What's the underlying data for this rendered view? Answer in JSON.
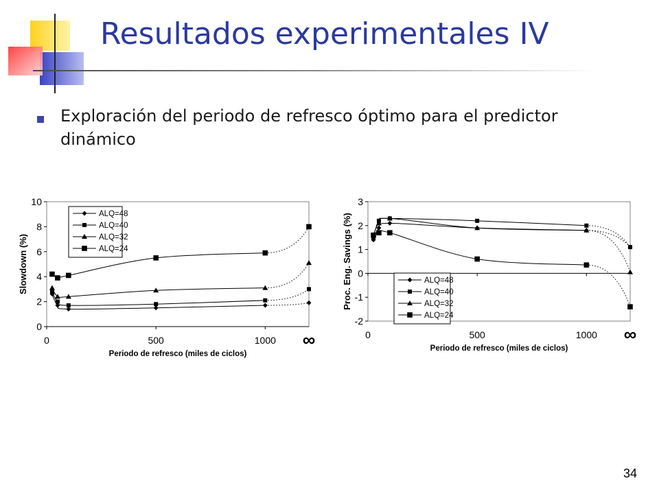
{
  "slide": {
    "title": "Resultados experimentales IV",
    "bullet": "Exploración del periodo de refresco óptimo para el predictor dinámico",
    "page_number": "34",
    "colors": {
      "title": "#2b3a9e",
      "bullet": "#3b44b0",
      "deco_yellow": "#ffd21f",
      "deco_blue": "#3b44c4",
      "deco_red": "#ff4a4a"
    }
  },
  "chart_data": [
    {
      "type": "line",
      "title": "",
      "xlabel": "Periodo de refresco (miles de ciclos)",
      "ylabel": "Slowdown (%)",
      "xlim": [
        0,
        1200
      ],
      "ylim": [
        0,
        10
      ],
      "x_ticks": [
        "0",
        "500",
        "1000"
      ],
      "x_tick_values": [
        0,
        500,
        1000
      ],
      "y_ticks": [
        "0",
        "2",
        "4",
        "6",
        "8",
        "10"
      ],
      "y_tick_values": [
        0,
        2,
        4,
        6,
        8,
        10
      ],
      "infinity_label": "∞",
      "infinity_x": 1200,
      "legend_position": "top-left",
      "grid": false,
      "series": [
        {
          "name": "ALQ=48",
          "marker": "diamond",
          "x": [
            25,
            50,
            100,
            500,
            1000
          ],
          "y": [
            2.6,
            1.7,
            1.4,
            1.5,
            1.7
          ],
          "infinity": 1.9
        },
        {
          "name": "ALQ=40",
          "marker": "square",
          "x": [
            25,
            50,
            100,
            500,
            1000
          ],
          "y": [
            2.8,
            2.0,
            1.7,
            1.8,
            2.1
          ],
          "infinity": 3.0
        },
        {
          "name": "ALQ=32",
          "marker": "triangle",
          "x": [
            25,
            50,
            100,
            500,
            1000
          ],
          "y": [
            3.1,
            2.4,
            2.4,
            2.9,
            3.1
          ],
          "infinity": 5.1
        },
        {
          "name": "ALQ=24",
          "marker": "square-large",
          "x": [
            25,
            50,
            100,
            500,
            1000
          ],
          "y": [
            4.2,
            3.9,
            4.1,
            5.5,
            5.9
          ],
          "infinity": 8.0
        }
      ]
    },
    {
      "type": "line",
      "title": "",
      "xlabel": "Periodo de refresco (miles de ciclos)",
      "ylabel": "Proc. Eng. Savings (%)",
      "xlim": [
        0,
        1200
      ],
      "ylim": [
        -2,
        3
      ],
      "x_ticks": [
        "0",
        "500",
        "1000"
      ],
      "x_tick_values": [
        0,
        500,
        1000
      ],
      "y_ticks": [
        "-2",
        "-1",
        "0",
        "1",
        "2",
        "3"
      ],
      "y_tick_values": [
        -2,
        -1,
        0,
        1,
        2,
        3
      ],
      "infinity_label": "∞",
      "infinity_x": 1200,
      "legend_position": "bottom-left",
      "grid": false,
      "series": [
        {
          "name": "ALQ=48",
          "marker": "diamond",
          "x": [
            25,
            50,
            100,
            500,
            1000
          ],
          "y": [
            1.4,
            1.9,
            2.1,
            1.9,
            1.8
          ],
          "infinity": 1.1
        },
        {
          "name": "ALQ=40",
          "marker": "square",
          "x": [
            25,
            50,
            100,
            500,
            1000
          ],
          "y": [
            1.5,
            2.2,
            2.3,
            2.2,
            2.0
          ],
          "infinity": 1.1
        },
        {
          "name": "ALQ=32",
          "marker": "triangle",
          "x": [
            25,
            50,
            100,
            500,
            1000
          ],
          "y": [
            1.6,
            2.1,
            2.3,
            1.9,
            1.8
          ],
          "infinity": 0.05
        },
        {
          "name": "ALQ=24",
          "marker": "square-large",
          "x": [
            25,
            50,
            100,
            500,
            1000
          ],
          "y": [
            1.6,
            1.7,
            1.7,
            0.6,
            0.35
          ],
          "infinity": -1.4
        }
      ]
    }
  ]
}
